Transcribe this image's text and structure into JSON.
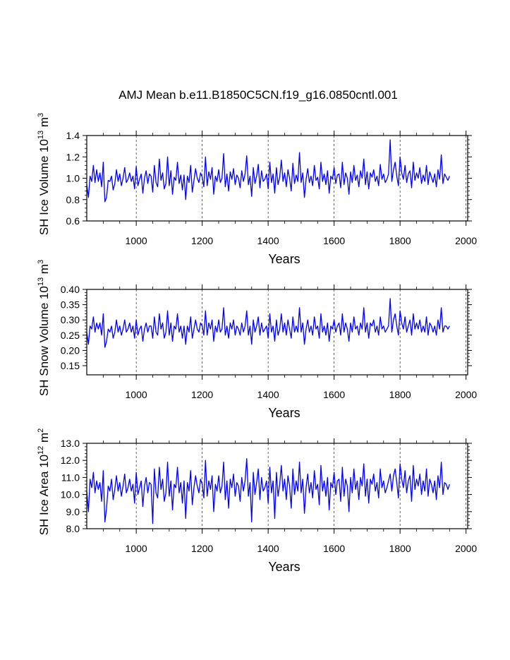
{
  "title": "AMJ Mean b.e11.B1850C5CN.f19_g16.0850cntl.001",
  "line_color": "#0000ff",
  "chart_data": [
    {
      "type": "line",
      "ylabel": "SH Ice Volume 10",
      "ylabel_exp": "13",
      "ylabel_unit": "m",
      "ylabel_unit_exp": "3",
      "xlabel": "Years",
      "xlim": [
        850,
        2005
      ],
      "ylim": [
        0.6,
        1.4
      ],
      "xticks": [
        1000,
        1200,
        1400,
        1600,
        1800,
        2000
      ],
      "xtick_labels": [
        "1000",
        "1200",
        "1400",
        "1600",
        "1800",
        "2000"
      ],
      "yticks": [
        0.6,
        0.8,
        1.0,
        1.2,
        1.4
      ],
      "ytick_labels": [
        "0.6",
        "0.8",
        "1.0",
        "1.2",
        "1.4"
      ],
      "grid": "vertical dashed",
      "series": [
        {
          "name": "SH Ice Volume",
          "x_start": 850,
          "x_step": 5,
          "values": [
            0.94,
            0.82,
            1.02,
            0.97,
            1.12,
            0.96,
            1.08,
            0.97,
            1.05,
            0.92,
            1.15,
            0.78,
            0.82,
            0.98,
            0.97,
            1.02,
            0.89,
            0.95,
            1.08,
            0.97,
            1.04,
            0.93,
            1.0,
            1.1,
            0.96,
            0.99,
            1.05,
            0.97,
            1.02,
            0.9,
            1.11,
            0.93,
            0.99,
            1.04,
            0.86,
            1.0,
            1.07,
            0.95,
            1.04,
            1.02,
            0.87,
            1.12,
            0.96,
            0.92,
            1.18,
            0.98,
            1.05,
            0.9,
            0.95,
            1.2,
            0.93,
            1.07,
            0.85,
            1.01,
            0.98,
            1.15,
            0.95,
            1.03,
            0.89,
            1.03,
            0.8,
            1.02,
            0.96,
            1.12,
            0.87,
            0.98,
            1.09,
            1.0,
            0.96,
            1.05,
            1.01,
            0.92,
            1.2,
            0.93,
            1.06,
            0.99,
            1.1,
            0.85,
            1.02,
            0.97,
            1.08,
            0.96,
            1.0,
            1.23,
            0.92,
            1.04,
            0.88,
            1.06,
            0.99,
            1.09,
            0.94,
            1.03,
            1.0,
            0.91,
            1.07,
            0.97,
            1.04,
            1.21,
            0.94,
            1.02,
            0.83,
            1.1,
            0.95,
            1.02,
            1.13,
            0.91,
            1.07,
            0.97,
            0.99,
            1.04,
            0.9,
            1.15,
            0.96,
            1.04,
            0.86,
            1.1,
            0.94,
            1.01,
            1.17,
            0.97,
            1.05,
            0.92,
            1.08,
            1.0,
            0.88,
            1.14,
            0.95,
            1.03,
            0.97,
            1.24,
            0.96,
            1.05,
            0.82,
            0.99,
            1.09,
            0.96,
            1.02,
            0.93,
            1.12,
            0.98,
            1.01,
            0.9,
            1.15,
            0.97,
            1.04,
            0.94,
            1.07,
            0.86,
            1.02,
            0.99,
            1.1,
            0.95,
            1.03,
            1.04,
            0.91,
            1.15,
            0.94,
            1.05,
            1.0,
            0.85,
            1.06,
            0.96,
            1.12,
            0.98,
            1.03,
            0.92,
            1.07,
            1.0,
            1.18,
            0.94,
            1.06,
            0.9,
            1.05,
            1.01,
            1.08,
            0.97,
            1.02,
            0.93,
            1.13,
            0.99,
            1.04,
            0.96,
            0.99,
            1.04,
            1.36,
            0.97,
            1.08,
            1.15,
            1.02,
            0.93,
            1.2,
            1.05,
            0.99,
            1.12,
            0.96,
            1.04,
            1.07,
            0.91,
            1.15,
            0.98,
            1.05,
            1.0,
            1.1,
            0.95,
            1.03,
            0.97,
            1.12,
            0.94,
            1.06,
            1.01,
            0.96,
            1.04,
            0.92,
            1.08,
            0.99,
            1.22,
            0.95,
            1.04,
            1.01,
            0.98,
            1.02
          ]
        }
      ]
    },
    {
      "type": "line",
      "ylabel": "SH Snow Volume 10",
      "ylabel_exp": "13",
      "ylabel_unit": "m",
      "ylabel_unit_exp": "3",
      "xlabel": "Years",
      "xlim": [
        850,
        2005
      ],
      "ylim": [
        0.12,
        0.4
      ],
      "xticks": [
        1000,
        1200,
        1400,
        1600,
        1800,
        2000
      ],
      "xtick_labels": [
        "1000",
        "1200",
        "1400",
        "1600",
        "1800",
        "2000"
      ],
      "yticks": [
        0.15,
        0.2,
        0.25,
        0.3,
        0.35,
        0.4
      ],
      "ytick_labels": [
        "0.15",
        "0.20",
        "0.25",
        "0.30",
        "0.35",
        "0.40"
      ],
      "grid": "vertical dashed",
      "series": [
        {
          "name": "SH Snow Volume",
          "x_start": 850,
          "x_step": 5,
          "values": [
            0.26,
            0.22,
            0.28,
            0.27,
            0.31,
            0.26,
            0.29,
            0.27,
            0.29,
            0.25,
            0.32,
            0.21,
            0.23,
            0.27,
            0.26,
            0.28,
            0.24,
            0.26,
            0.3,
            0.26,
            0.28,
            0.25,
            0.27,
            0.3,
            0.26,
            0.27,
            0.29,
            0.26,
            0.28,
            0.24,
            0.3,
            0.25,
            0.27,
            0.28,
            0.23,
            0.27,
            0.29,
            0.26,
            0.28,
            0.28,
            0.24,
            0.31,
            0.26,
            0.25,
            0.32,
            0.27,
            0.29,
            0.24,
            0.26,
            0.33,
            0.25,
            0.29,
            0.23,
            0.28,
            0.27,
            0.32,
            0.26,
            0.28,
            0.24,
            0.28,
            0.22,
            0.28,
            0.26,
            0.31,
            0.24,
            0.27,
            0.3,
            0.27,
            0.26,
            0.29,
            0.28,
            0.25,
            0.33,
            0.25,
            0.29,
            0.27,
            0.3,
            0.23,
            0.28,
            0.26,
            0.3,
            0.26,
            0.27,
            0.34,
            0.25,
            0.28,
            0.24,
            0.29,
            0.27,
            0.3,
            0.25,
            0.28,
            0.27,
            0.25,
            0.29,
            0.26,
            0.28,
            0.33,
            0.25,
            0.28,
            0.22,
            0.3,
            0.26,
            0.28,
            0.31,
            0.25,
            0.29,
            0.26,
            0.27,
            0.28,
            0.24,
            0.32,
            0.26,
            0.28,
            0.23,
            0.3,
            0.25,
            0.27,
            0.32,
            0.26,
            0.29,
            0.25,
            0.3,
            0.27,
            0.24,
            0.31,
            0.26,
            0.28,
            0.26,
            0.34,
            0.26,
            0.29,
            0.22,
            0.27,
            0.3,
            0.26,
            0.28,
            0.25,
            0.31,
            0.27,
            0.28,
            0.24,
            0.32,
            0.26,
            0.28,
            0.25,
            0.29,
            0.23,
            0.28,
            0.27,
            0.3,
            0.26,
            0.28,
            0.29,
            0.25,
            0.32,
            0.26,
            0.29,
            0.27,
            0.23,
            0.29,
            0.26,
            0.31,
            0.27,
            0.28,
            0.25,
            0.29,
            0.27,
            0.34,
            0.26,
            0.29,
            0.24,
            0.29,
            0.28,
            0.3,
            0.26,
            0.28,
            0.25,
            0.31,
            0.27,
            0.28,
            0.26,
            0.27,
            0.28,
            0.37,
            0.26,
            0.3,
            0.32,
            0.28,
            0.25,
            0.33,
            0.29,
            0.27,
            0.31,
            0.26,
            0.28,
            0.3,
            0.25,
            0.32,
            0.27,
            0.29,
            0.27,
            0.3,
            0.26,
            0.28,
            0.26,
            0.31,
            0.25,
            0.29,
            0.28,
            0.26,
            0.28,
            0.25,
            0.3,
            0.27,
            0.34,
            0.26,
            0.28,
            0.28,
            0.27,
            0.28
          ]
        }
      ]
    },
    {
      "type": "line",
      "ylabel": "SH Ice Area 10",
      "ylabel_exp": "12",
      "ylabel_unit": "m",
      "ylabel_unit_exp": "2",
      "xlabel": "Years",
      "xlim": [
        850,
        2005
      ],
      "ylim": [
        8.0,
        13.0
      ],
      "xticks": [
        1000,
        1200,
        1400,
        1600,
        1800,
        2000
      ],
      "xtick_labels": [
        "1000",
        "1200",
        "1400",
        "1600",
        "1800",
        "2000"
      ],
      "yticks": [
        8.0,
        9.0,
        10.0,
        11.0,
        12.0,
        13.0
      ],
      "ytick_labels": [
        "8.0",
        "9.0",
        "10.0",
        "11.0",
        "12.0",
        "13.0"
      ],
      "grid": "vertical dashed",
      "series": [
        {
          "name": "SH Ice Area",
          "x_start": 850,
          "x_step": 5,
          "values": [
            10.2,
            9.0,
            10.9,
            10.4,
            11.3,
            10.1,
            10.8,
            10.3,
            10.7,
            9.6,
            11.4,
            8.4,
            9.2,
            10.5,
            10.2,
            10.9,
            9.7,
            10.3,
            11.1,
            10.2,
            10.7,
            9.9,
            10.5,
            11.2,
            10.1,
            10.4,
            10.9,
            10.2,
            10.6,
            9.5,
            11.3,
            10.0,
            10.4,
            10.8,
            9.3,
            10.5,
            11.0,
            10.1,
            10.7,
            10.6,
            8.3,
            11.5,
            10.1,
            9.8,
            11.6,
            10.3,
            10.9,
            9.6,
            10.1,
            11.9,
            9.9,
            10.8,
            9.1,
            10.6,
            10.4,
            11.6,
            10.1,
            10.7,
            9.5,
            10.8,
            8.6,
            10.7,
            10.2,
            11.4,
            9.4,
            10.4,
            11.1,
            10.5,
            10.1,
            10.9,
            10.6,
            9.8,
            12.0,
            9.9,
            10.8,
            10.3,
            11.1,
            9.0,
            10.6,
            10.2,
            11.1,
            10.1,
            10.5,
            11.9,
            9.7,
            10.8,
            9.2,
            10.9,
            10.4,
            11.2,
            9.9,
            10.7,
            10.5,
            9.6,
            11.0,
            10.2,
            10.8,
            12.1,
            9.9,
            10.7,
            8.4,
            11.3,
            10.0,
            10.7,
            11.5,
            9.7,
            11.0,
            10.2,
            10.4,
            10.8,
            9.5,
            11.6,
            10.1,
            10.8,
            8.6,
            11.3,
            9.9,
            10.6,
            11.7,
            10.2,
            10.9,
            9.7,
            11.1,
            10.5,
            9.2,
            11.5,
            10.0,
            10.8,
            10.2,
            11.9,
            10.1,
            10.9,
            8.9,
            10.4,
            11.2,
            10.1,
            10.7,
            9.8,
            11.4,
            10.3,
            10.6,
            9.4,
            11.7,
            10.2,
            10.8,
            9.9,
            11.0,
            9.1,
            10.7,
            10.4,
            11.3,
            10.0,
            10.8,
            10.9,
            9.6,
            11.6,
            9.9,
            10.9,
            10.5,
            9.0,
            11.0,
            10.1,
            11.5,
            10.3,
            10.8,
            9.7,
            11.0,
            10.5,
            11.8,
            9.9,
            10.9,
            9.5,
            10.9,
            10.6,
            11.2,
            10.2,
            10.7,
            9.8,
            11.5,
            10.4,
            10.8,
            10.1,
            10.4,
            10.8,
            11.2,
            10.2,
            11.1,
            11.5,
            10.7,
            9.8,
            11.8,
            10.9,
            10.4,
            11.4,
            10.1,
            10.8,
            11.1,
            9.6,
            11.7,
            10.3,
            10.9,
            10.5,
            11.2,
            10.0,
            10.8,
            10.2,
            11.5,
            9.9,
            10.9,
            10.6,
            10.1,
            10.8,
            9.7,
            11.1,
            10.4,
            11.9,
            10.0,
            10.7,
            10.6,
            10.3,
            10.6
          ]
        }
      ]
    }
  ]
}
